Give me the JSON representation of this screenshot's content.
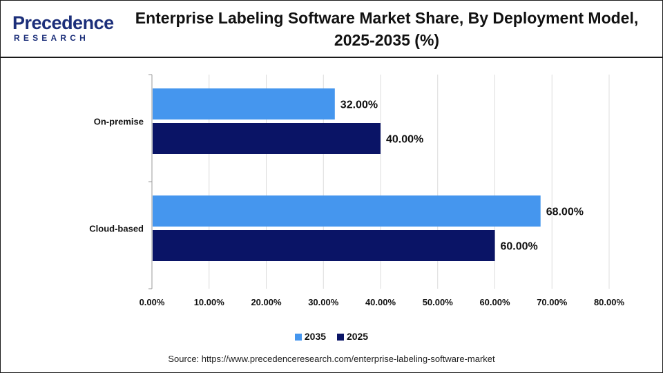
{
  "logo": {
    "main_text": "Precedence",
    "sub_text": "RESEARCH"
  },
  "title": "Enterprise Labeling Software Market Share, By Deployment Model, 2025-2035 (%)",
  "source": "Source: https://www.precedenceresearch.com/enterprise-labeling-software-market",
  "chart_data": {
    "type": "bar",
    "orientation": "horizontal",
    "title": "Enterprise Labeling Software Market Share, By Deployment Model, 2025-2035 (%)",
    "categories": [
      "On-premise",
      "Cloud-based"
    ],
    "series": [
      {
        "name": "2035",
        "values": [
          32.0,
          68.0
        ],
        "color": "#4596ee"
      },
      {
        "name": "2025",
        "values": [
          40.0,
          60.0
        ],
        "color": "#0a1466"
      }
    ],
    "data_labels": [
      [
        "32.00%",
        "68.00%"
      ],
      [
        "40.00%",
        "60.00%"
      ]
    ],
    "xlim": [
      0,
      80
    ],
    "x_ticks": [
      0,
      10,
      20,
      30,
      40,
      50,
      60,
      70,
      80
    ],
    "x_tick_labels": [
      "0.00%",
      "10.00%",
      "20.00%",
      "30.00%",
      "40.00%",
      "50.00%",
      "60.00%",
      "70.00%",
      "80.00%"
    ],
    "xlabel": "",
    "ylabel": "",
    "grid": "vertical",
    "legend_position": "bottom-center"
  },
  "colors": {
    "grid": "#dcdcdc",
    "axis": "#9a9a9a",
    "logo": "#1c2f7a"
  }
}
